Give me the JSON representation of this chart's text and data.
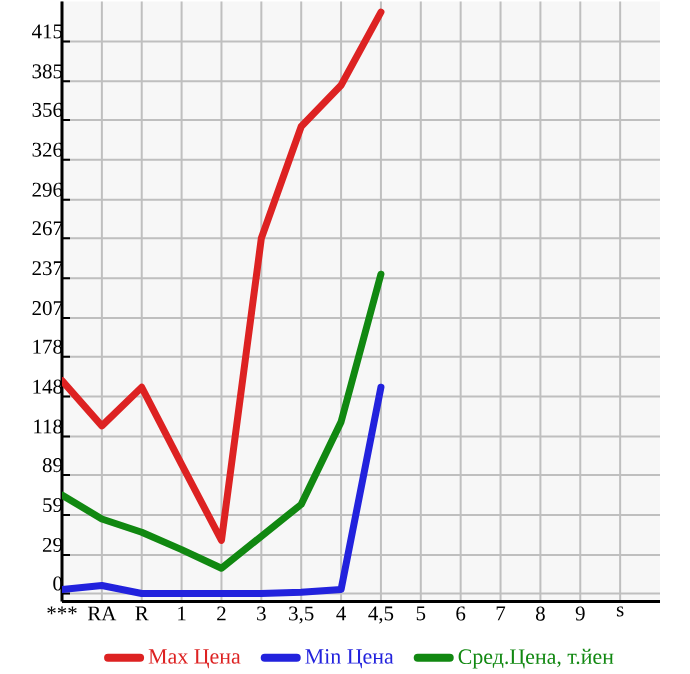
{
  "chart_data": {
    "type": "line",
    "categories": [
      "***",
      "RA",
      "R",
      "1",
      "2",
      "3",
      "3,5",
      "4",
      "4,5",
      "5",
      "6",
      "7",
      "8",
      "9",
      "s"
    ],
    "series": [
      {
        "name": "Max Цена",
        "color": "#dd2222",
        "values": [
          160,
          126,
          155,
          97,
          40,
          267,
          351,
          382,
          437,
          null,
          null,
          null,
          null,
          null,
          null
        ]
      },
      {
        "name": "Min Цена",
        "color": "#2222dd",
        "values": [
          3,
          6,
          0,
          0,
          0,
          0,
          1,
          3,
          155,
          null,
          null,
          null,
          null,
          null,
          null
        ]
      },
      {
        "name": "Сред.Цена, т.йен",
        "color": "#118811",
        "values": [
          74,
          56,
          46,
          33,
          19,
          43,
          67,
          129,
          240,
          null,
          null,
          null,
          null,
          null,
          null
        ]
      }
    ],
    "ylim": [
      -6,
      445
    ],
    "yticks": [
      0,
      29,
      59,
      89,
      118,
      148,
      178,
      207,
      237,
      267,
      296,
      326,
      356,
      385,
      415
    ],
    "grid": true,
    "legend": "bottom",
    "marker": "none",
    "line_style": "solid"
  }
}
